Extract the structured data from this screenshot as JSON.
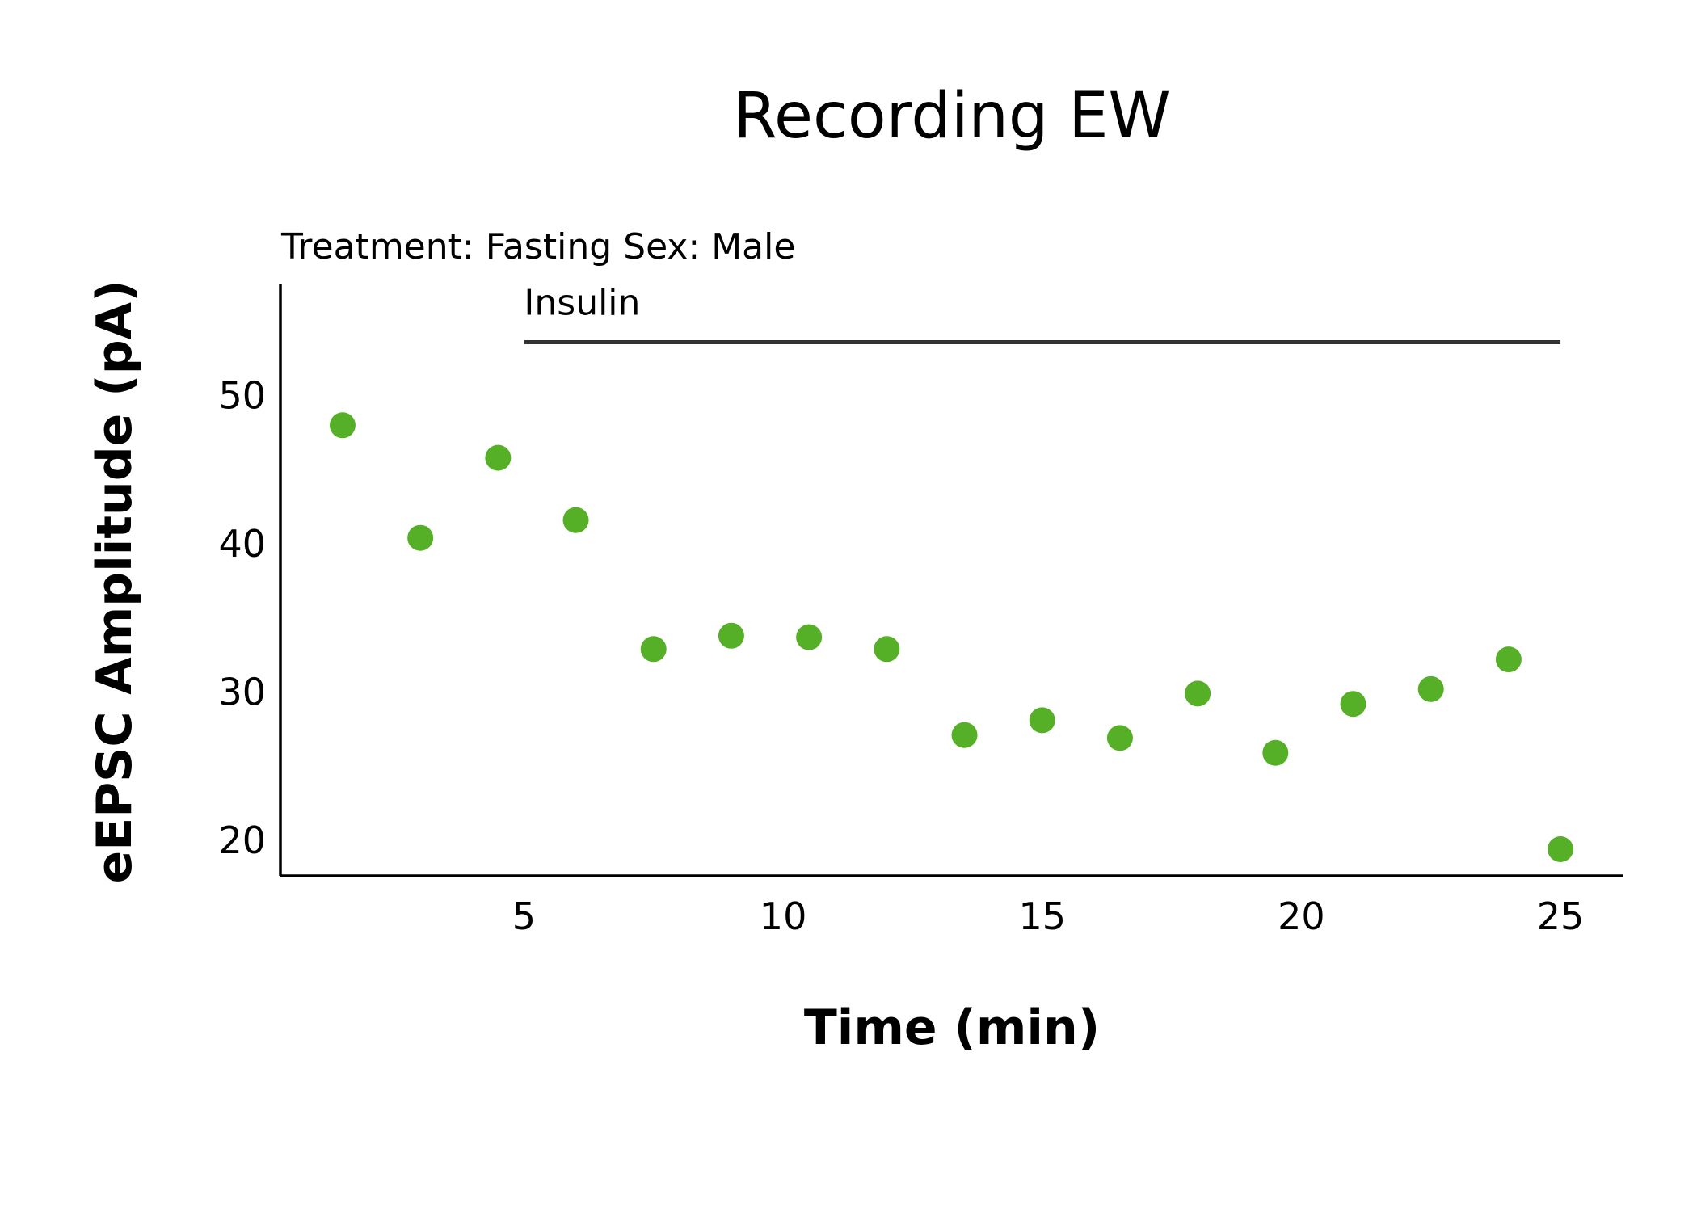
{
  "chart_data": {
    "type": "scatter",
    "title": "Recording EW",
    "subtitle": "Treatment: Fasting  Sex: Male",
    "xlabel": "Time (min)",
    "ylabel": "eEPSC Amplitude (pA)",
    "xlim": [
      0.3,
      26.2
    ],
    "ylim": [
      17.6,
      57.5
    ],
    "xticks": [
      5,
      10,
      15,
      20,
      25
    ],
    "yticks": [
      20,
      30,
      40,
      50
    ],
    "grid": false,
    "color": "#56b027",
    "annotation": {
      "label": "Insulin",
      "x_start": 5,
      "x_end": 25,
      "y": 53.6
    },
    "points": [
      {
        "x": 1.5,
        "y": 48.0
      },
      {
        "x": 3.0,
        "y": 40.4
      },
      {
        "x": 4.5,
        "y": 45.8
      },
      {
        "x": 6.0,
        "y": 41.6
      },
      {
        "x": 7.5,
        "y": 32.9
      },
      {
        "x": 9.0,
        "y": 33.8
      },
      {
        "x": 10.5,
        "y": 33.7
      },
      {
        "x": 12.0,
        "y": 32.9
      },
      {
        "x": 13.5,
        "y": 27.1
      },
      {
        "x": 15.0,
        "y": 28.1
      },
      {
        "x": 16.5,
        "y": 26.9
      },
      {
        "x": 18.0,
        "y": 29.9
      },
      {
        "x": 19.5,
        "y": 25.9
      },
      {
        "x": 21.0,
        "y": 29.2
      },
      {
        "x": 22.5,
        "y": 30.2
      },
      {
        "x": 24.0,
        "y": 32.2
      },
      {
        "x": 25.0,
        "y": 19.4
      }
    ]
  }
}
